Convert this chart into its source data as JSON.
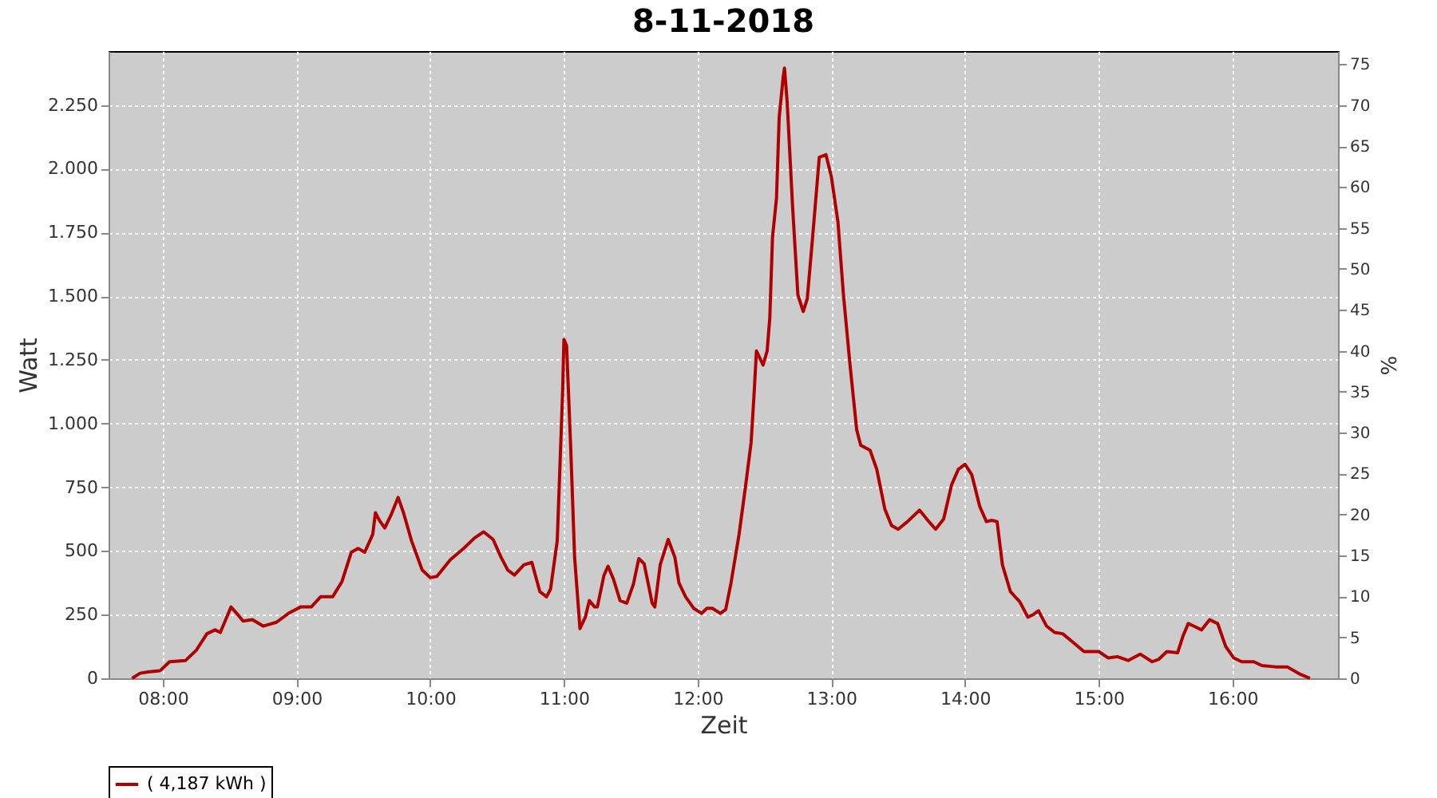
{
  "chart_data": {
    "type": "line",
    "title": "8-11-2018",
    "xlabel": "Zeit",
    "ylabel": "Watt",
    "y2label": "%",
    "xlim": [
      7.594,
      16.79
    ],
    "xticks": [
      {
        "value": 8,
        "label": "08:00"
      },
      {
        "value": 9,
        "label": "09:00"
      },
      {
        "value": 10,
        "label": "10:00"
      },
      {
        "value": 11,
        "label": "11:00"
      },
      {
        "value": 12,
        "label": "12:00"
      },
      {
        "value": 13,
        "label": "13:00"
      },
      {
        "value": 14,
        "label": "14:00"
      },
      {
        "value": 15,
        "label": "15:00"
      },
      {
        "value": 16,
        "label": "16:00"
      }
    ],
    "ylim": [
      0,
      2462
    ],
    "yticks": [
      0,
      250,
      500,
      750,
      {
        "value": 1000,
        "label": "1.000"
      },
      {
        "value": 1250,
        "label": "1.250"
      },
      {
        "value": 1500,
        "label": "1.500"
      },
      {
        "value": 1750,
        "label": "1.750"
      },
      {
        "value": 2000,
        "label": "2.000"
      },
      {
        "value": 2250,
        "label": "2.250"
      }
    ],
    "y2lim": [
      0,
      76.6
    ],
    "y2ticks": [
      0,
      5,
      10,
      15,
      20,
      25,
      30,
      35,
      40,
      45,
      50,
      55,
      60,
      65,
      70,
      75
    ],
    "grid": true,
    "legend": "bottom",
    "line_style": "solid",
    "marker": "none",
    "x": [
      7.77,
      7.83,
      7.89,
      7.98,
      8.05,
      8.17,
      8.25,
      8.33,
      8.39,
      8.43,
      8.51,
      8.56,
      8.6,
      8.67,
      8.75,
      8.85,
      8.94,
      9.03,
      9.11,
      9.18,
      9.27,
      9.34,
      9.41,
      9.46,
      9.51,
      9.57,
      9.59,
      9.62,
      9.66,
      9.71,
      9.76,
      9.8,
      9.86,
      9.94,
      10.0,
      10.05,
      10.15,
      10.25,
      10.33,
      10.4,
      10.47,
      10.53,
      10.58,
      10.63,
      10.7,
      10.76,
      10.82,
      10.87,
      10.9,
      10.95,
      10.99,
      11.0,
      11.02,
      11.05,
      11.08,
      11.12,
      11.16,
      11.19,
      11.23,
      11.25,
      11.3,
      11.33,
      11.37,
      11.42,
      11.47,
      11.52,
      11.56,
      11.6,
      11.66,
      11.68,
      11.72,
      11.78,
      11.83,
      11.86,
      11.91,
      11.97,
      12.03,
      12.07,
      12.11,
      12.17,
      12.21,
      12.25,
      12.31,
      12.36,
      12.4,
      12.42,
      12.44,
      12.49,
      12.52,
      12.54,
      12.56,
      12.59,
      12.61,
      12.64,
      12.65,
      12.67,
      12.71,
      12.75,
      12.79,
      12.82,
      12.86,
      12.91,
      12.96,
      13.0,
      13.05,
      13.09,
      13.14,
      13.19,
      13.22,
      13.29,
      13.34,
      13.4,
      13.45,
      13.5,
      13.57,
      13.66,
      13.73,
      13.78,
      13.84,
      13.9,
      13.95,
      14.0,
      14.05,
      14.11,
      14.16,
      14.2,
      14.24,
      14.28,
      14.34,
      14.41,
      14.47,
      14.51,
      14.55,
      14.61,
      14.67,
      14.73,
      14.8,
      14.89,
      15.0,
      15.07,
      15.14,
      15.22,
      15.31,
      15.4,
      15.45,
      15.51,
      15.59,
      15.63,
      15.67,
      15.71,
      15.77,
      15.83,
      15.89,
      15.95,
      16.01,
      16.07,
      16.16,
      16.22,
      16.32,
      16.41,
      16.51,
      16.58
    ],
    "series": [
      {
        "name": "( 4,187 kWh )",
        "color": "#b00000",
        "values": [
          0,
          20,
          25,
          30,
          65,
          70,
          110,
          175,
          190,
          180,
          280,
          250,
          225,
          230,
          205,
          220,
          255,
          280,
          280,
          320,
          320,
          380,
          495,
          510,
          495,
          565,
          650,
          620,
          590,
          645,
          710,
          650,
          540,
          425,
          395,
          400,
          465,
          510,
          550,
          575,
          545,
          475,
          425,
          405,
          445,
          455,
          340,
          320,
          350,
          540,
          1120,
          1330,
          1305,
          915,
          475,
          195,
          240,
          305,
          280,
          280,
          405,
          440,
          390,
          305,
          295,
          370,
          470,
          450,
          295,
          280,
          445,
          545,
          475,
          375,
          320,
          275,
          255,
          275,
          275,
          255,
          270,
          375,
          565,
          760,
          925,
          1095,
          1285,
          1230,
          1285,
          1415,
          1730,
          1885,
          2200,
          2360,
          2395,
          2260,
          1855,
          1505,
          1440,
          1490,
          1730,
          2045,
          2055,
          1970,
          1790,
          1510,
          1230,
          975,
          915,
          895,
          820,
          665,
          600,
          585,
          615,
          660,
          615,
          585,
          625,
          760,
          820,
          840,
          800,
          675,
          615,
          620,
          615,
          445,
          340,
          300,
          240,
          250,
          265,
          205,
          180,
          175,
          145,
          105,
          105,
          80,
          85,
          70,
          95,
          65,
          75,
          105,
          100,
          165,
          215,
          205,
          190,
          230,
          215,
          125,
          80,
          65,
          65,
          50,
          45,
          45,
          15,
          0
        ]
      }
    ]
  }
}
